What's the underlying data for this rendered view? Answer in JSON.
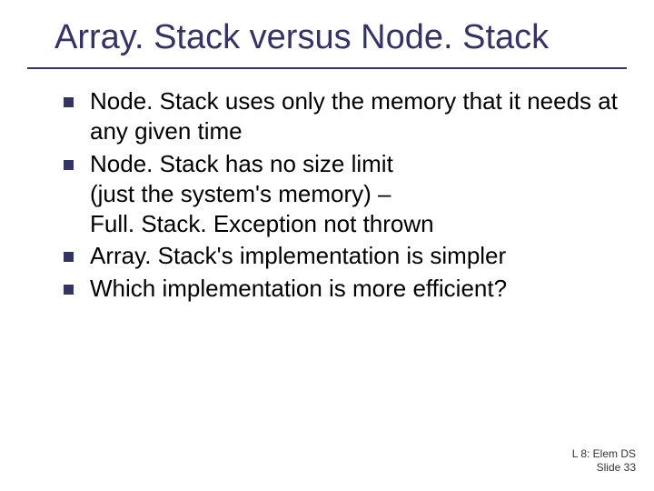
{
  "title": "Array. Stack versus Node. Stack",
  "title_color": "#333366",
  "title_fontsize": 38,
  "underline_color": "#333366",
  "bullets": [
    "Node. Stack uses only the memory that it needs at any given time",
    "Node. Stack has no size limit\n(just the system's memory) –\nFull. Stack. Exception not thrown",
    "Array. Stack's implementation is simpler",
    "Which implementation is more efficient?"
  ],
  "bullet_color": "#333366",
  "body_fontsize": 26,
  "body_color": "#000000",
  "footer": {
    "line1": "L 8: Elem DS",
    "line2": "Slide 33"
  },
  "footer_fontsize": 12,
  "background_color": "#ffffff",
  "slide_width": 720,
  "slide_height": 540
}
